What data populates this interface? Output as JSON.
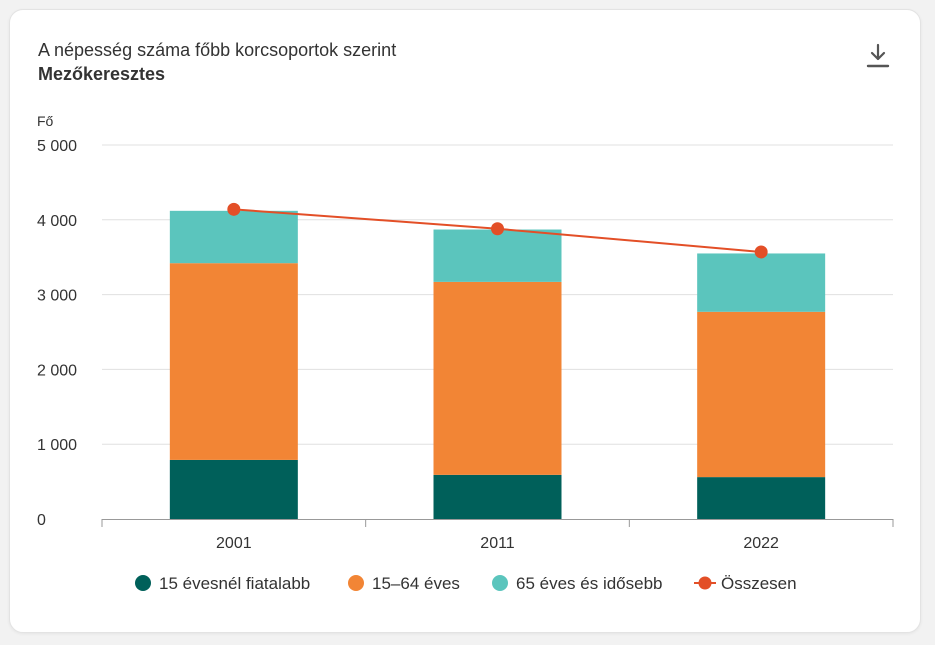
{
  "title": "A népesség száma főbb korcsoportok szerint",
  "subtitle": "Mezőkeresztes",
  "download_icon": "download-icon",
  "colors": {
    "young": "#00605a",
    "working": "#f28535",
    "elderly": "#5bc5bd",
    "total": "#e34f27",
    "grid": "#e0e0e0",
    "axis": "#999999"
  },
  "chart_data": {
    "type": "bar",
    "stacked": true,
    "ylabel": "Fő",
    "ylim": [
      0,
      5000
    ],
    "yticks": [
      0,
      1000,
      2000,
      3000,
      4000,
      5000
    ],
    "ytick_labels": [
      "0",
      "1 000",
      "2 000",
      "3 000",
      "4 000",
      "5 000"
    ],
    "categories": [
      "2001",
      "2011",
      "2022"
    ],
    "series": [
      {
        "name": "15 évesnél fiatalabb",
        "type": "bar",
        "color": "#00605a",
        "values": [
          790,
          590,
          560
        ]
      },
      {
        "name": "15–64 éves",
        "type": "bar",
        "color": "#f28535",
        "values": [
          2630,
          2580,
          2210
        ]
      },
      {
        "name": "65 éves és idősebb",
        "type": "bar",
        "color": "#5bc5bd",
        "values": [
          700,
          700,
          780
        ]
      },
      {
        "name": "Összesen",
        "type": "line",
        "color": "#e34f27",
        "values": [
          4140,
          3880,
          3570
        ]
      }
    ],
    "grid": true,
    "legend_position": "bottom"
  }
}
